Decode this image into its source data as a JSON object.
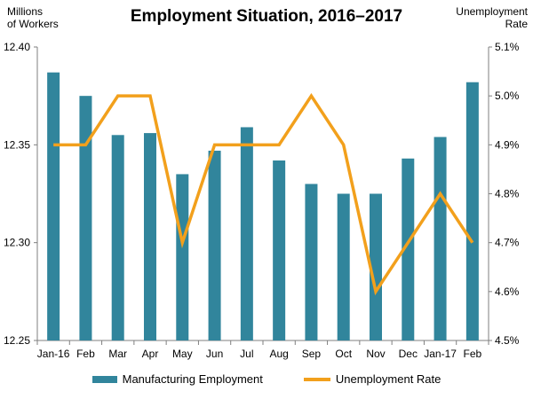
{
  "colors": {
    "bar": "#31859c",
    "line": "#f2a01c",
    "axis": "#7f7f7f"
  },
  "chart_data": {
    "type": "bar",
    "title": "Employment Situation, 2016–2017",
    "left_axis_label": "Millions\nof Workers",
    "right_axis_label": "Unemployment\nRate",
    "categories": [
      "Jan-16",
      "Feb",
      "Mar",
      "Apr",
      "May",
      "Jun",
      "Jul",
      "Aug",
      "Sep",
      "Oct",
      "Nov",
      "Dec",
      "Jan-17",
      "Feb"
    ],
    "ylim": [
      12.25,
      12.4
    ],
    "y_ticks": [
      "12.25",
      "12.30",
      "12.35",
      "12.40"
    ],
    "y2lim": [
      4.5,
      5.1
    ],
    "y2_ticks": [
      "4.5%",
      "4.6%",
      "4.7%",
      "4.8%",
      "4.9%",
      "5.0%",
      "5.1%"
    ],
    "legend_position": "bottom",
    "series": [
      {
        "name": "Manufacturing Employment",
        "type": "bar",
        "axis": "left",
        "values": [
          12.387,
          12.375,
          12.355,
          12.356,
          12.335,
          12.347,
          12.359,
          12.342,
          12.33,
          12.325,
          12.325,
          12.343,
          12.354,
          12.382
        ]
      },
      {
        "name": "Unemployment Rate",
        "type": "line",
        "axis": "right",
        "values": [
          4.9,
          4.9,
          5.0,
          5.0,
          4.7,
          4.9,
          4.9,
          4.9,
          5.0,
          4.9,
          4.6,
          4.7,
          4.8,
          4.7
        ]
      }
    ]
  }
}
